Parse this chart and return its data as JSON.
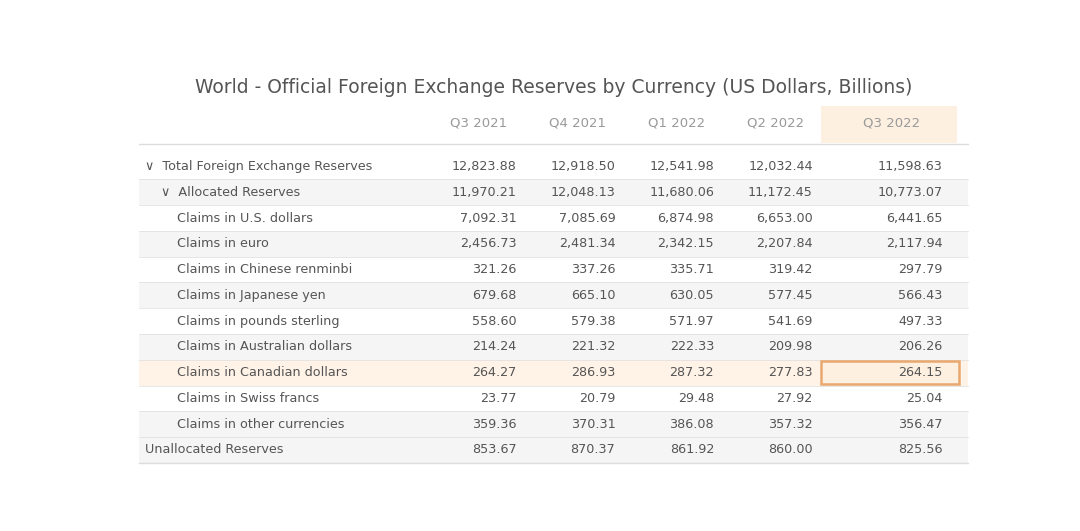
{
  "title": "World - Official Foreign Exchange Reserves by Currency (US Dollars, Billions)",
  "columns": [
    "",
    "Q3 2021",
    "Q4 2021",
    "Q1 2022",
    "Q2 2022",
    "Q3 2022"
  ],
  "rows": [
    {
      "label": "∨  Total Foreign Exchange Reserves",
      "bg": "#ffffff",
      "values": [
        "12,823.88",
        "12,918.50",
        "12,541.98",
        "12,032.44",
        "11,598.63"
      ],
      "highlight_last": false,
      "highlight_row": false
    },
    {
      "label": "    ∨  Allocated Reserves",
      "bg": "#f5f5f5",
      "values": [
        "11,970.21",
        "12,048.13",
        "11,680.06",
        "11,172.45",
        "10,773.07"
      ],
      "highlight_last": false,
      "highlight_row": false
    },
    {
      "label": "        Claims in U.S. dollars",
      "bg": "#ffffff",
      "values": [
        "7,092.31",
        "7,085.69",
        "6,874.98",
        "6,653.00",
        "6,441.65"
      ],
      "highlight_last": false,
      "highlight_row": false
    },
    {
      "label": "        Claims in euro",
      "bg": "#f5f5f5",
      "values": [
        "2,456.73",
        "2,481.34",
        "2,342.15",
        "2,207.84",
        "2,117.94"
      ],
      "highlight_last": false,
      "highlight_row": false
    },
    {
      "label": "        Claims in Chinese renminbi",
      "bg": "#ffffff",
      "values": [
        "321.26",
        "337.26",
        "335.71",
        "319.42",
        "297.79"
      ],
      "highlight_last": false,
      "highlight_row": false
    },
    {
      "label": "        Claims in Japanese yen",
      "bg": "#f5f5f5",
      "values": [
        "679.68",
        "665.10",
        "630.05",
        "577.45",
        "566.43"
      ],
      "highlight_last": false,
      "highlight_row": false
    },
    {
      "label": "        Claims in pounds sterling",
      "bg": "#ffffff",
      "values": [
        "558.60",
        "579.38",
        "571.97",
        "541.69",
        "497.33"
      ],
      "highlight_last": false,
      "highlight_row": false
    },
    {
      "label": "        Claims in Australian dollars",
      "bg": "#f5f5f5",
      "values": [
        "214.24",
        "221.32",
        "222.33",
        "209.98",
        "206.26"
      ],
      "highlight_last": false,
      "highlight_row": false
    },
    {
      "label": "        Claims in Canadian dollars",
      "bg": "#fff3e8",
      "values": [
        "264.27",
        "286.93",
        "287.32",
        "277.83",
        "264.15"
      ],
      "highlight_last": true,
      "highlight_row": true
    },
    {
      "label": "        Claims in Swiss francs",
      "bg": "#ffffff",
      "values": [
        "23.77",
        "20.79",
        "29.48",
        "27.92",
        "25.04"
      ],
      "highlight_last": false,
      "highlight_row": false
    },
    {
      "label": "        Claims in other currencies",
      "bg": "#f5f5f5",
      "values": [
        "359.36",
        "370.31",
        "386.08",
        "357.32",
        "356.47"
      ],
      "highlight_last": false,
      "highlight_row": false
    },
    {
      "label": "Unallocated Reserves",
      "bg": "#f5f5f5",
      "values": [
        "853.67",
        "870.37",
        "861.92",
        "860.00",
        "825.56"
      ],
      "highlight_last": false,
      "highlight_row": false
    }
  ],
  "header_last_bg": "#fdf0e0",
  "highlight_border_color": "#e8a870",
  "title_color": "#555555",
  "header_color": "#999999",
  "text_color": "#555555",
  "separator_color": "#dddddd"
}
